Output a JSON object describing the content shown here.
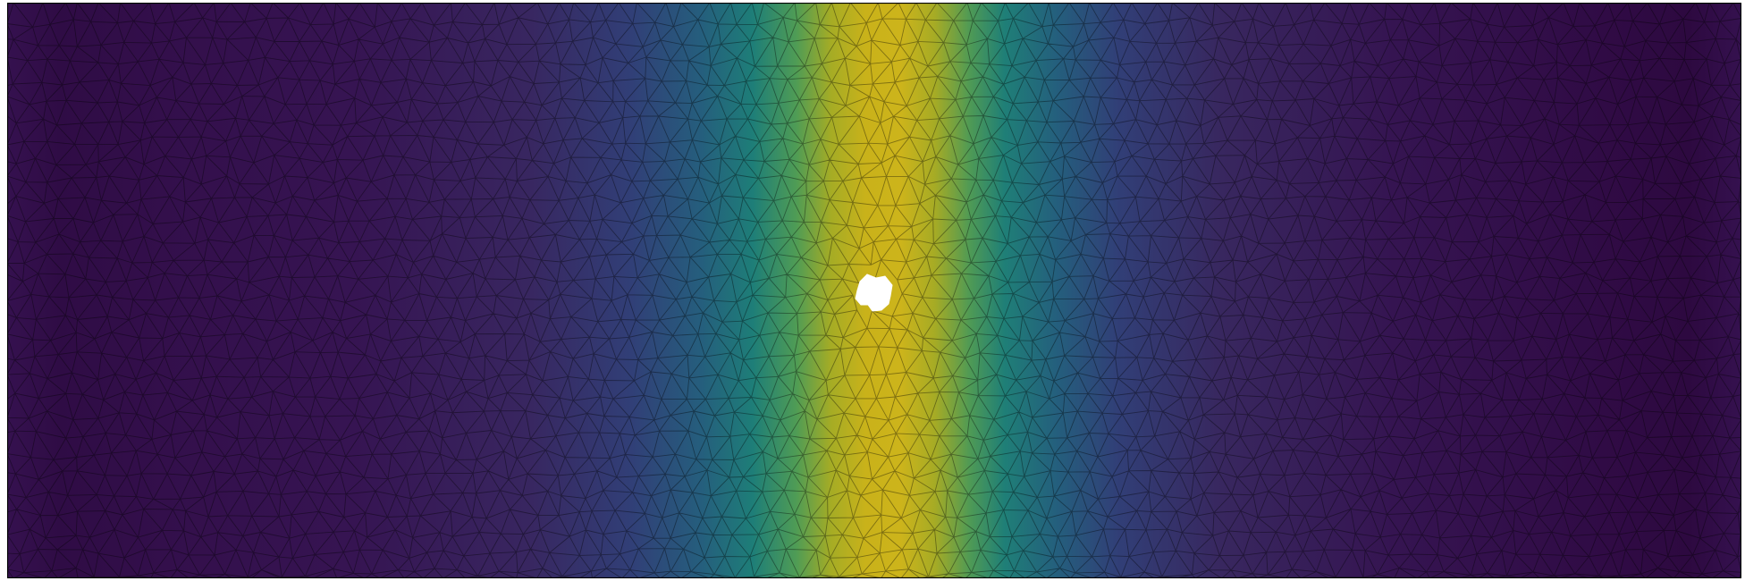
{
  "figure": {
    "field_colormap": [
      "#35104e",
      "#3a2a6e",
      "#2f4a82",
      "#22687f",
      "#1d8a72",
      "#6aab46",
      "#b9b21c",
      "#d6b51a"
    ],
    "mesh_line_color": "#000000",
    "hole_color": "#ffffff",
    "frame_color": "#000000"
  }
}
